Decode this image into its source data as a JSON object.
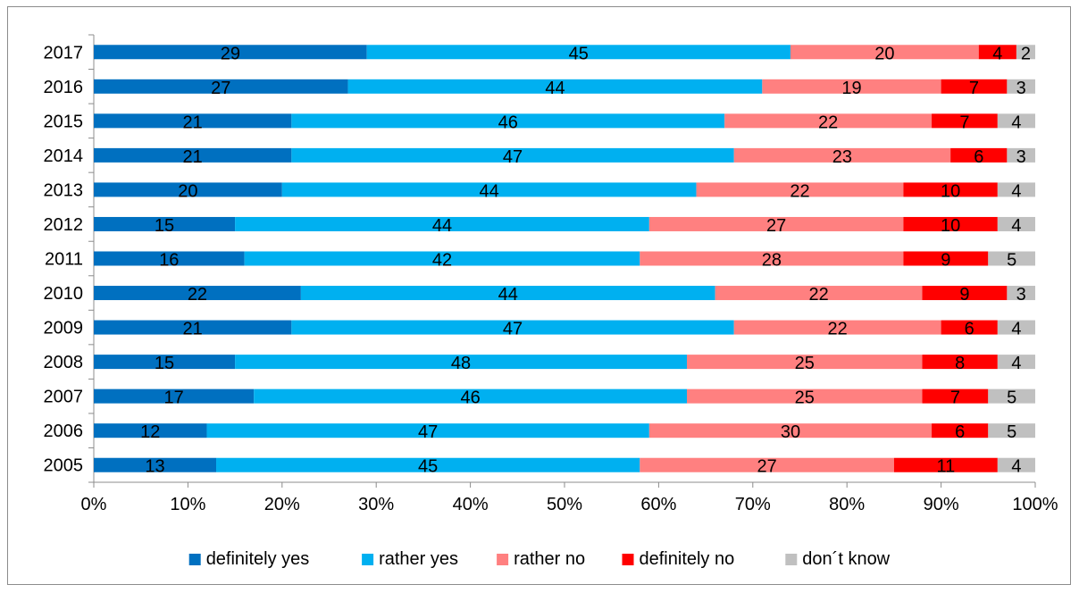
{
  "chart_data": {
    "type": "bar",
    "orientation": "horizontal",
    "stacked": "percent",
    "categories": [
      "2017",
      "2016",
      "2015",
      "2014",
      "2013",
      "2012",
      "2011",
      "2010",
      "2009",
      "2008",
      "2007",
      "2006",
      "2005"
    ],
    "series": [
      {
        "name": "definitely yes",
        "color": "#0070c0",
        "values": [
          29,
          27,
          21,
          21,
          20,
          15,
          16,
          22,
          21,
          15,
          17,
          12,
          13
        ]
      },
      {
        "name": "rather yes",
        "color": "#00b0f0",
        "values": [
          45,
          44,
          46,
          47,
          44,
          44,
          42,
          44,
          47,
          48,
          46,
          47,
          45
        ]
      },
      {
        "name": "rather no",
        "color": "#ff8080",
        "values": [
          20,
          19,
          22,
          23,
          22,
          27,
          28,
          22,
          22,
          25,
          25,
          30,
          27
        ]
      },
      {
        "name": "definitely no",
        "color": "#ff0000",
        "values": [
          4,
          7,
          7,
          6,
          10,
          10,
          9,
          9,
          6,
          8,
          7,
          6,
          11
        ]
      },
      {
        "name": "don´t know",
        "color": "#c0c0c0",
        "values": [
          2,
          3,
          4,
          3,
          4,
          4,
          5,
          3,
          4,
          4,
          5,
          5,
          4
        ]
      }
    ],
    "x_ticks": [
      "0%",
      "10%",
      "20%",
      "30%",
      "40%",
      "50%",
      "60%",
      "70%",
      "80%",
      "90%",
      "100%"
    ],
    "xlim": [
      0,
      100
    ],
    "data_labels": true,
    "legend_position": "bottom",
    "grid": false
  }
}
